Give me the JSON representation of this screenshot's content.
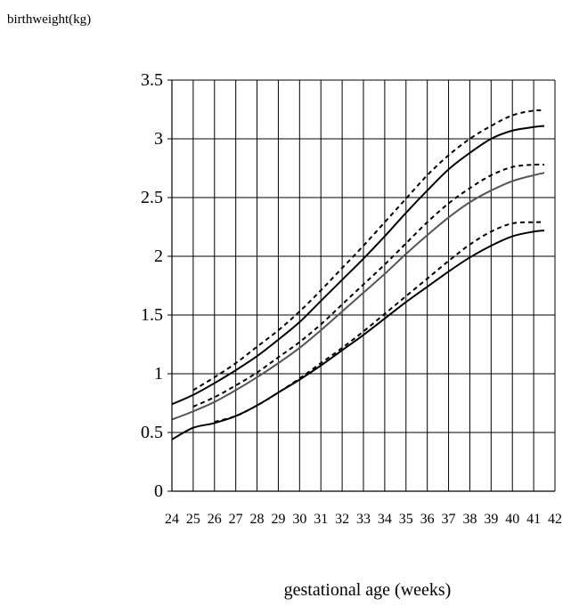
{
  "chart_data": {
    "type": "line",
    "title": "",
    "ylabel": "birthweight(kg)",
    "xlabel": "gestational age (weeks)",
    "x_ticks": [
      "24",
      "25",
      "26",
      "27",
      "28",
      "29",
      "30",
      "31",
      "32",
      "33",
      "34",
      "35",
      "36",
      "37",
      "38",
      "39",
      "40",
      "41",
      "42"
    ],
    "y_ticks": [
      "0",
      "0.5",
      "1",
      "1.5",
      "2",
      "2.5",
      "3",
      "3.5"
    ],
    "xlim": [
      24,
      42
    ],
    "ylim": [
      0,
      3.5
    ],
    "grid": true,
    "x": [
      24,
      25,
      26,
      27,
      28,
      29,
      30,
      31,
      32,
      33,
      34,
      35,
      36,
      37,
      38,
      39,
      40,
      41,
      41.5
    ],
    "series": [
      {
        "style": "solid",
        "color": "#000000",
        "values": [
          0.74,
          0.82,
          0.92,
          1.03,
          1.15,
          1.29,
          1.44,
          1.62,
          1.8,
          1.98,
          2.17,
          2.37,
          2.56,
          2.74,
          2.88,
          3.0,
          3.07,
          3.1,
          3.11
        ]
      },
      {
        "style": "dashed",
        "color": "#000000",
        "values": [
          null,
          0.86,
          0.97,
          1.09,
          1.23,
          1.37,
          1.53,
          1.71,
          1.9,
          2.09,
          2.29,
          2.49,
          2.69,
          2.86,
          3.0,
          3.11,
          3.2,
          3.24,
          3.24
        ]
      },
      {
        "style": "solid",
        "color": "#555555",
        "values": [
          0.61,
          0.68,
          0.76,
          0.86,
          0.97,
          1.09,
          1.22,
          1.37,
          1.53,
          1.69,
          1.85,
          2.02,
          2.18,
          2.33,
          2.46,
          2.56,
          2.64,
          2.69,
          2.71
        ]
      },
      {
        "style": "dashed",
        "color": "#000000",
        "values": [
          null,
          0.72,
          0.8,
          0.9,
          1.01,
          1.14,
          1.27,
          1.42,
          1.59,
          1.76,
          1.93,
          2.11,
          2.29,
          2.45,
          2.58,
          2.69,
          2.76,
          2.78,
          2.78
        ]
      },
      {
        "style": "solid",
        "color": "#000000",
        "values": [
          0.44,
          0.54,
          0.58,
          0.64,
          0.73,
          0.84,
          0.95,
          1.07,
          1.2,
          1.33,
          1.47,
          1.61,
          1.74,
          1.87,
          1.99,
          2.09,
          2.17,
          2.21,
          2.22
        ]
      },
      {
        "style": "dashed",
        "color": "#000000",
        "values": [
          null,
          null,
          0.59,
          0.64,
          0.73,
          0.84,
          0.96,
          1.09,
          1.22,
          1.36,
          1.51,
          1.66,
          1.81,
          1.96,
          2.1,
          2.21,
          2.28,
          2.29,
          2.29
        ]
      }
    ]
  }
}
